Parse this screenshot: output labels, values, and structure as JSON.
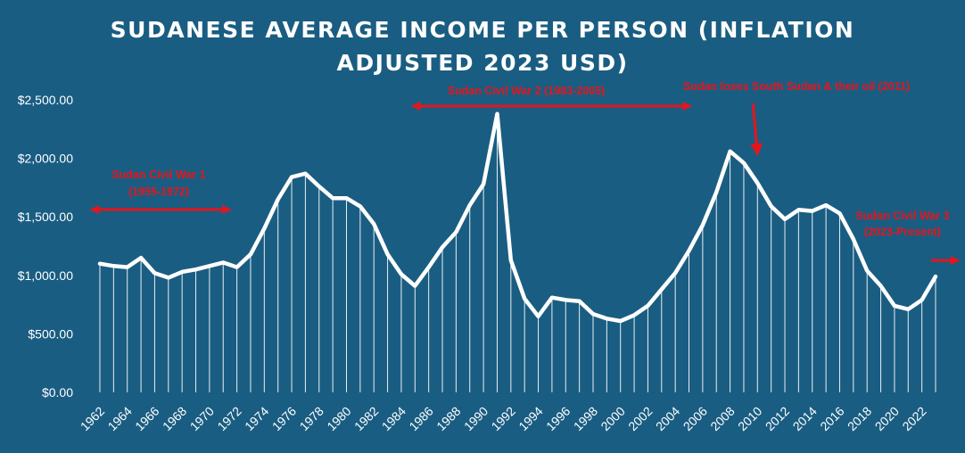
{
  "chart_data": {
    "type": "area",
    "title_lines": [
      "SUDANESE AVERAGE INCOME PER PERSON (INFLATION",
      "ADJUSTED 2023 USD)"
    ],
    "xlabel": "",
    "ylabel": "",
    "ylim": [
      0,
      2500
    ],
    "yticks": [
      0,
      500,
      1000,
      1500,
      2000,
      2500
    ],
    "ytick_labels": [
      "$0.00",
      "$500.00",
      "$1,000.00",
      "$1,500.00",
      "$2,000.00",
      "$2,500.00"
    ],
    "xlim": [
      1962,
      2023
    ],
    "xtick_labels": [
      "1962",
      "1964",
      "1966",
      "1968",
      "1970",
      "1972",
      "1974",
      "1976",
      "1978",
      "1980",
      "1982",
      "1984",
      "1986",
      "1988",
      "1990",
      "1992",
      "1994",
      "1996",
      "1998",
      "2000",
      "2002",
      "2004",
      "2006",
      "2008",
      "2010",
      "2012",
      "2014",
      "2016",
      "2018",
      "2020",
      "2022"
    ],
    "grid": false,
    "legend": "none",
    "colors": {
      "background": "#1a5d82",
      "line": "#ffffff",
      "droplines": "#ffffff",
      "annotation": "#e8141b"
    },
    "series": [
      {
        "x": [
          1962,
          1963,
          1964,
          1965,
          1966,
          1967,
          1968,
          1969,
          1970,
          1971,
          1972,
          1973,
          1974,
          1975,
          1976,
          1977,
          1978,
          1979,
          1980,
          1981,
          1982,
          1983,
          1984,
          1985,
          1986,
          1987,
          1988,
          1989,
          1990,
          1991,
          1992,
          1993,
          1994,
          1995,
          1996,
          1997,
          1998,
          1999,
          2000,
          2001,
          2002,
          2003,
          2004,
          2005,
          2006,
          2007,
          2008,
          2009,
          2010,
          2011,
          2012,
          2013,
          2014,
          2015,
          2016,
          2017,
          2018,
          2019,
          2020,
          2021,
          2022,
          2023
        ],
        "y": [
          1100,
          1080,
          1070,
          1150,
          1020,
          980,
          1030,
          1050,
          1080,
          1110,
          1070,
          1180,
          1400,
          1650,
          1840,
          1870,
          1760,
          1660,
          1660,
          1590,
          1440,
          1180,
          1010,
          910,
          1070,
          1240,
          1370,
          1600,
          1780,
          2380,
          1130,
          800,
          650,
          810,
          790,
          780,
          670,
          630,
          610,
          660,
          740,
          880,
          1020,
          1210,
          1430,
          1710,
          2060,
          1960,
          1790,
          1590,
          1480,
          1560,
          1550,
          1600,
          1530,
          1310,
          1040,
          910,
          740,
          710,
          790,
          990
        ]
      }
    ],
    "annotations": [
      {
        "text_lines": [
          "Sudan Civil War 1",
          "(1955-1972)"
        ],
        "arrow": "double",
        "x_start": 1962,
        "x_end": 1971
      },
      {
        "text_lines": [
          "Sudan Civil War 2 (1983-2005)"
        ],
        "arrow": "double",
        "x_start": 1985,
        "x_end": 2005
      },
      {
        "text_lines": [
          "Sudan loses South Sudan & their  oil (2011)"
        ],
        "arrow": "down",
        "x_point": 2010,
        "y_point": 1970
      },
      {
        "text_lines": [
          "Sudan Civil War 3",
          "(2023-Present)"
        ],
        "arrow": "right",
        "x_start": 2023
      }
    ]
  }
}
